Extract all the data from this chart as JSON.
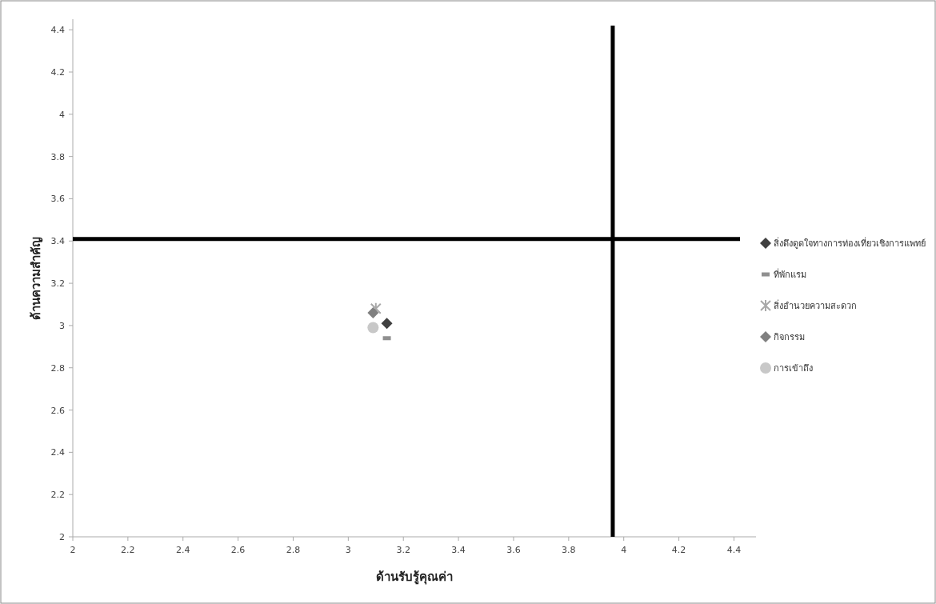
{
  "chart_data": {
    "type": "scatter",
    "xlabel": "ด้านรับรู้คุณค่า",
    "ylabel": "ด้านความสำคัญ",
    "xlim": [
      2,
      4.48
    ],
    "ylim": [
      2,
      4.45
    ],
    "xticks": [
      2,
      2.2,
      2.4,
      2.6,
      2.8,
      3,
      3.2,
      3.4,
      3.6,
      3.8,
      4,
      4.2,
      4.4
    ],
    "yticks": [
      2,
      2.2,
      2.4,
      2.6,
      2.8,
      3,
      3.2,
      3.4,
      3.6,
      3.8,
      4,
      4.2,
      4.4
    ],
    "grid": false,
    "legend": "right",
    "series": [
      {
        "name": "สิ่งดึงดูดใจทางการท่องเที่ยวเชิงการแพทย์",
        "color": "#404040",
        "marker": "diamond",
        "x": [
          3.14
        ],
        "values": [
          3.01
        ]
      },
      {
        "name": "ที่พักแรม",
        "color": "#909090",
        "marker": "square",
        "x": [
          3.14
        ],
        "values": [
          2.94
        ]
      },
      {
        "name": "สิ่งอำนวยความสะดวก",
        "color": "#a8a8a8",
        "marker": "cross",
        "x": [
          3.1
        ],
        "values": [
          3.08
        ]
      },
      {
        "name": "กิจกรรม",
        "color": "#808080",
        "marker": "diamond",
        "x": [
          3.09
        ],
        "values": [
          3.06
        ]
      },
      {
        "name": "การเข้าถึง",
        "color": "#c8c8c8",
        "marker": "circle",
        "x": [
          3.09
        ],
        "values": [
          2.99
        ]
      }
    ],
    "ref_lines": [
      {
        "axis": "x",
        "value": 3.96,
        "color": "#000000"
      },
      {
        "axis": "y",
        "value": 3.41,
        "color": "#000000"
      }
    ]
  }
}
